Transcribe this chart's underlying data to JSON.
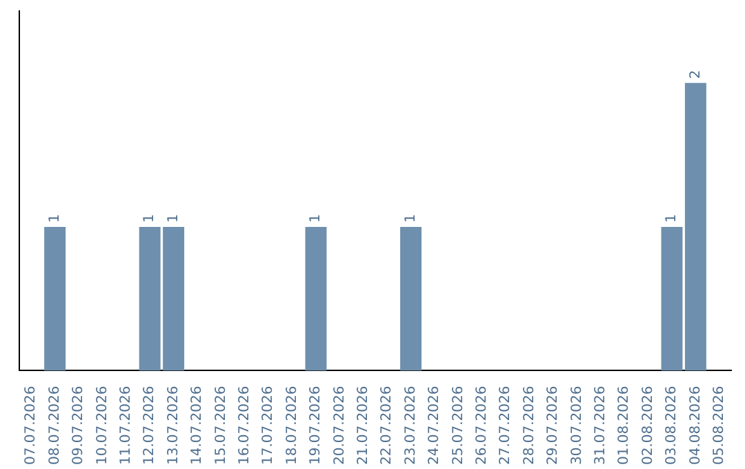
{
  "chart_data": {
    "type": "bar",
    "categories": [
      "07.07.2026",
      "08.07.2026",
      "09.07.2026",
      "10.07.2026",
      "11.07.2026",
      "12.07.2026",
      "13.07.2026",
      "14.07.2026",
      "15.07.2026",
      "16.07.2026",
      "17.07.2026",
      "18.07.2026",
      "19.07.2026",
      "20.07.2026",
      "21.07.2026",
      "22.07.2026",
      "23.07.2026",
      "24.07.2026",
      "25.07.2026",
      "26.07.2026",
      "27.07.2026",
      "28.07.2026",
      "29.07.2026",
      "30.07.2026",
      "31.07.2026",
      "01.08.2026",
      "02.08.2026",
      "03.08.2026",
      "04.08.2026",
      "05.08.2026"
    ],
    "values": [
      0,
      1,
      0,
      0,
      0,
      1,
      1,
      0,
      0,
      0,
      0,
      0,
      1,
      0,
      0,
      0,
      1,
      0,
      0,
      0,
      0,
      0,
      0,
      0,
      0,
      0,
      0,
      1,
      2,
      0
    ],
    "value_labels": [
      null,
      "1",
      null,
      null,
      null,
      "1",
      "1",
      null,
      null,
      null,
      null,
      null,
      "1",
      null,
      null,
      null,
      "1",
      null,
      null,
      null,
      null,
      null,
      null,
      null,
      null,
      null,
      null,
      "1",
      "2",
      null
    ],
    "color": "#6e8fad",
    "tick_labels": "x"
  }
}
